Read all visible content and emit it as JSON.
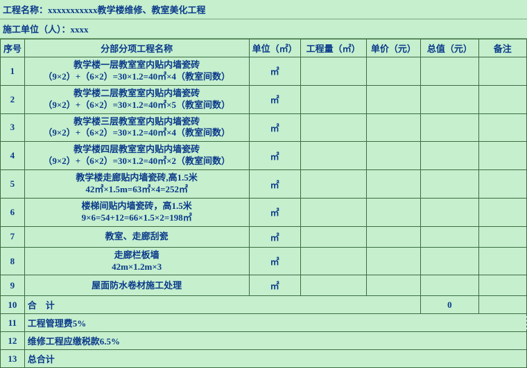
{
  "header": {
    "project_label": "工程名称：xxxxxxxxxxx教学楼维修、教室美化工程",
    "org_label": "施工单位（人）：xxxx"
  },
  "columns": {
    "idx": "序号",
    "name": "分部分项工程名称",
    "unit": "单位（㎡）",
    "qty": "工程量（㎡）",
    "price": "单价（元）",
    "total": "总值（元）",
    "remark": "备注"
  },
  "rows": [
    {
      "idx": "1",
      "name_l1": "教学楼一层教室室内贴内墙瓷砖",
      "name_l2": "（9×2）+（6×2）=30×1.2=40㎡×4（教室间数）",
      "unit": "㎡"
    },
    {
      "idx": "2",
      "name_l1": "教学楼二层教室室内贴内墙瓷砖",
      "name_l2": "（9×2）+（6×2）=30×1.2=40㎡×5（教室间数）",
      "unit": "㎡"
    },
    {
      "idx": "3",
      "name_l1": "教学楼三层教室室内贴内墙瓷砖",
      "name_l2": "（9×2）+（6×2）=30×1.2=40㎡×4（教室间数）",
      "unit": "㎡"
    },
    {
      "idx": "4",
      "name_l1": "教学楼四层教室室内贴内墙瓷砖",
      "name_l2": "（9×2）+（6×2）=30×1.2=40㎡×2（教室间数）",
      "unit": "㎡"
    },
    {
      "idx": "5",
      "name_l1": "教学楼走廊贴内墙瓷砖,高1.5米",
      "name_l2": "42㎡×1.5m=63㎡×4=252㎡",
      "unit": "㎡"
    },
    {
      "idx": "6",
      "name_l1": "楼梯间贴内墙瓷砖，高1.5米",
      "name_l2": "9×6=54+12=66×1.5×2=198㎡",
      "unit": "㎡"
    },
    {
      "idx": "7",
      "name_l1": "教室、走廊刮瓷",
      "name_l2": "",
      "unit": "㎡"
    },
    {
      "idx": "8",
      "name_l1": "走廊栏板墙",
      "name_l2": "42m×1.2m×3",
      "unit": "㎡"
    },
    {
      "idx": "9",
      "name_l1": "屋面防水卷材施工处理",
      "name_l2": "",
      "unit": "㎡"
    }
  ],
  "summary": {
    "r10_idx": "10",
    "r10_label": "合　计",
    "r10_total": "0",
    "r11_idx": "11",
    "r11_label": "工程管理费5%",
    "r12_idx": "12",
    "r12_label": "维修工程应缴税款6.5%",
    "r13_idx": "13",
    "r13_label": "总合计"
  },
  "style": {
    "background_color": "#c6efce",
    "text_color": "#0a3a8a",
    "border_color": "#3a6b3f",
    "font_family": "SimSun",
    "font_size_pt": 10,
    "font_weight": "bold"
  }
}
